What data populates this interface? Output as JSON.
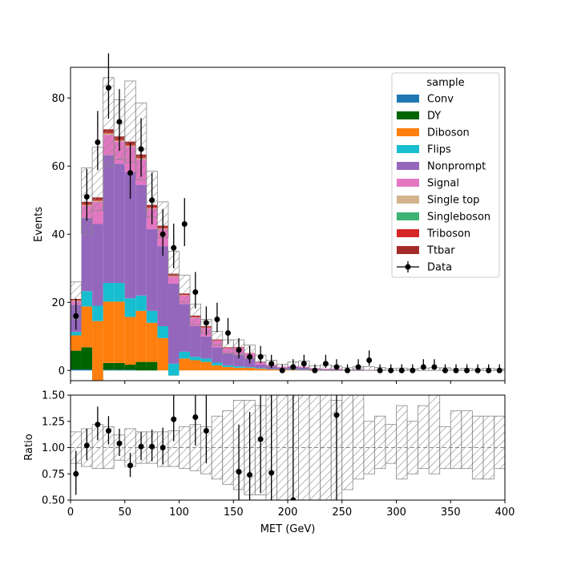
{
  "chart_data": {
    "type": "bar",
    "subtype": "stacked-histogram-with-data-points-and-ratio-panel",
    "x": {
      "label": "MET (GeV)",
      "range": [
        0,
        400
      ],
      "ticks": [
        0,
        50,
        100,
        150,
        200,
        250,
        300,
        350,
        400
      ],
      "bin_edges": [
        0,
        10,
        20,
        30,
        40,
        50,
        60,
        70,
        80,
        90,
        100,
        110,
        120,
        130,
        140,
        150,
        160,
        170,
        180,
        190,
        200,
        210,
        220,
        230,
        240,
        250,
        260,
        270,
        280,
        290,
        300,
        310,
        320,
        330,
        340,
        350,
        360,
        370,
        380,
        390,
        400
      ]
    },
    "main_panel": {
      "ylabel": "Events",
      "ylim": [
        -3,
        89
      ],
      "yticks": [
        0,
        20,
        40,
        60,
        80
      ]
    },
    "ratio_panel": {
      "ylabel": "Ratio",
      "ylim": [
        0.5,
        1.5
      ],
      "yticks": [
        0.5,
        0.75,
        1.0,
        1.25,
        1.5
      ],
      "ytick_labels": [
        "0.50",
        "0.75",
        "1.00",
        "1.25",
        "1.50"
      ],
      "reference_line": 1.0
    },
    "legend": {
      "title": "sample",
      "position": "top-right",
      "entries": [
        "Conv",
        "DY",
        "Diboson",
        "Flips",
        "Nonprompt",
        "Signal",
        "Single top",
        "Singleboson",
        "Triboson",
        "Ttbar",
        "Data"
      ]
    },
    "series": [
      {
        "name": "Conv",
        "color": "#1f77b4",
        "values": [
          0.3,
          0.3,
          0,
          0.2,
          0.2,
          0.2,
          0,
          0,
          0,
          0,
          0,
          0,
          0,
          0,
          0,
          0,
          0,
          0,
          0,
          0,
          0,
          0,
          0,
          0,
          0,
          0,
          0,
          0,
          0,
          0,
          0,
          0,
          0,
          0,
          0,
          0,
          0,
          0,
          0,
          0
        ]
      },
      {
        "name": "DY",
        "color": "#006400",
        "values": [
          5.5,
          6.5,
          -3.0,
          2.0,
          2.0,
          1.5,
          2.5,
          2.5,
          0,
          0,
          0,
          0,
          0,
          0,
          0,
          0,
          0,
          0,
          0,
          0,
          0,
          0,
          0,
          0,
          0,
          0,
          0,
          0,
          0,
          0,
          0,
          0,
          0,
          0,
          0,
          0,
          0,
          0,
          0,
          0
        ]
      },
      {
        "name": "Diboson",
        "color": "#ff7f0e",
        "values": [
          4.5,
          12.0,
          17.5,
          18.0,
          18.0,
          14.0,
          15.0,
          11.5,
          9.5,
          -1.5,
          3.5,
          3.0,
          2.5,
          1.5,
          1.0,
          0.8,
          0.8,
          0.5,
          0.3,
          0.3,
          0.3,
          0.2,
          0.2,
          0.1,
          0.1,
          0.1,
          0.1,
          0,
          0,
          0,
          0,
          0,
          0,
          0,
          0,
          0,
          0,
          0,
          0,
          0
        ]
      },
      {
        "name": "Flips",
        "color": "#17becf",
        "values": [
          1.0,
          4.5,
          4.5,
          5.5,
          5.5,
          5.5,
          4.5,
          3.5,
          3.5,
          3.5,
          2.0,
          1.0,
          1.0,
          0.8,
          0.5,
          0.4,
          0.2,
          0.2,
          0.1,
          0.1,
          0.1,
          0.1,
          0,
          0,
          0,
          0,
          0,
          0,
          0,
          0,
          0,
          0,
          0,
          0,
          0,
          0,
          0,
          0,
          0,
          0
        ]
      },
      {
        "name": "Nonprompt",
        "color": "#9467bd",
        "values": [
          8.0,
          21.5,
          24.0,
          37.5,
          35.0,
          37.0,
          32.5,
          24.0,
          23.5,
          23.5,
          14.0,
          9.0,
          6.5,
          4.5,
          3.5,
          3.5,
          2.5,
          1.0,
          0.8,
          0.4,
          0.6,
          0.5,
          0.3,
          0.2,
          0.2,
          0.1,
          0.2,
          0.1,
          0.1,
          0.1,
          0.1,
          0,
          0.1,
          0,
          0.1,
          0,
          0,
          0,
          0,
          0
        ]
      },
      {
        "name": "Signal",
        "color": "#e377c2",
        "values": [
          1.0,
          3.5,
          6.5,
          6.0,
          6.5,
          7.5,
          7.5,
          6.0,
          5.0,
          2.0,
          2.5,
          2.5,
          2.5,
          2.0,
          1.5,
          2.0,
          1.5,
          0.8,
          0.5,
          0.3,
          0.3,
          0.3,
          0.2,
          0.2,
          0.2,
          0.1,
          0.1,
          0.1,
          0.1,
          0,
          0.1,
          0,
          0,
          0,
          0,
          0,
          0,
          0,
          0,
          0
        ]
      },
      {
        "name": "Single top",
        "color": "#d2b48c",
        "values": [
          0.2,
          0.3,
          0.3,
          0.4,
          0.3,
          0.3,
          0.3,
          0.2,
          0.2,
          0.2,
          0.1,
          0.1,
          0.1,
          0,
          0,
          0,
          0,
          0,
          0,
          0,
          0,
          0,
          0,
          0,
          0,
          0,
          0,
          0,
          0,
          0,
          0,
          0,
          0,
          0,
          0,
          0,
          0,
          0,
          0,
          0
        ]
      },
      {
        "name": "Singleboson",
        "color": "#3cb371",
        "values": [
          0,
          0,
          0,
          0,
          0,
          0,
          0,
          0,
          0,
          0,
          0,
          0,
          0,
          0,
          0,
          0,
          0,
          0,
          0,
          0,
          0,
          0,
          0,
          0,
          0,
          0,
          0,
          0,
          0,
          0,
          0,
          0,
          0,
          0,
          0,
          0,
          0,
          0,
          0,
          0
        ]
      },
      {
        "name": "Triboson",
        "color": "#d62728",
        "values": [
          0.2,
          0.3,
          0.3,
          0.4,
          0.4,
          0.4,
          0.4,
          0.3,
          0.3,
          0.3,
          0.2,
          0.2,
          0.2,
          0.1,
          0.1,
          0.1,
          0,
          0,
          0,
          0,
          0,
          0,
          0,
          0,
          0,
          0,
          0,
          0,
          0,
          0,
          0,
          0,
          0,
          0,
          0,
          0,
          0,
          0,
          0,
          0
        ]
      },
      {
        "name": "Ttbar",
        "color": "#a52a2a",
        "values": [
          0.3,
          0.6,
          0.7,
          0.8,
          0.8,
          0.8,
          0.7,
          0.6,
          0.5,
          0.4,
          0.3,
          0.3,
          0.2,
          0.2,
          0.2,
          0.1,
          0.1,
          0.1,
          0,
          0,
          0,
          0,
          0,
          0,
          0,
          0,
          0,
          0,
          0,
          0,
          0,
          0,
          0,
          0,
          0,
          0,
          0,
          0,
          0,
          0
        ]
      }
    ],
    "stat_band": {
      "up": [
        26,
        59.5,
        65.5,
        86,
        79.5,
        85,
        78.5,
        58.5,
        49.5,
        35,
        28,
        19.5,
        15,
        11.5,
        9,
        9,
        7.5,
        4.5,
        3,
        1.8,
        2.5,
        2.8,
        1.4,
        1.6,
        1.3,
        0.8,
        1.2,
        1.1,
        0.9,
        0.6,
        0.7,
        0.5,
        0.7,
        0.8,
        0.8,
        0.5,
        0.6,
        0.4,
        0.6,
        0.5
      ],
      "down": [
        15,
        40,
        47,
        60,
        62,
        61,
        56,
        45,
        39,
        28,
        20,
        13.5,
        11,
        7.5,
        5,
        4.5,
        3.5,
        2.5,
        1.2,
        0.3,
        0.2,
        0.1,
        0,
        0,
        0,
        0,
        0,
        0,
        0,
        0,
        0,
        0,
        0,
        0,
        0,
        0,
        0,
        0,
        0,
        0
      ]
    },
    "data_points": {
      "name": "Data",
      "color": "#000000",
      "values": [
        16,
        51,
        67,
        83,
        73,
        58,
        65,
        50,
        40,
        36,
        43,
        23,
        14,
        15,
        11,
        6,
        4,
        4,
        2,
        0,
        1,
        2,
        0,
        2,
        1,
        0,
        1,
        3,
        0,
        0,
        0,
        0,
        1,
        1,
        0,
        0,
        0,
        0,
        0,
        0
      ],
      "errors_up": [
        5.1,
        8.2,
        9.2,
        10.1,
        9.6,
        8.7,
        9.1,
        8.1,
        7.4,
        7.1,
        7.6,
        5.9,
        4.8,
        4.9,
        4.4,
        3.5,
        3.2,
        3.2,
        2.6,
        1.8,
        2.3,
        2.6,
        1.8,
        2.6,
        2.3,
        1.8,
        2.3,
        2.9,
        1.8,
        1.8,
        1.8,
        1.8,
        2.3,
        2.3,
        1.8,
        1.8,
        1.8,
        1.8,
        1.8,
        1.8
      ],
      "errors_down": [
        4.0,
        7.1,
        8.2,
        9.1,
        8.5,
        7.6,
        8.1,
        7.1,
        6.3,
        6.0,
        6.5,
        4.8,
        3.7,
        3.8,
        3.3,
        2.4,
        1.9,
        1.9,
        1.3,
        0,
        0.8,
        1.3,
        0,
        1.3,
        0.8,
        0,
        0.8,
        1.6,
        0,
        0,
        0,
        0,
        0.8,
        0.8,
        0,
        0,
        0,
        0,
        0,
        0
      ]
    },
    "ratio": {
      "band_up": [
        1.15,
        1.18,
        1.22,
        1.2,
        1.12,
        1.18,
        1.15,
        1.15,
        1.15,
        1.16,
        1.2,
        1.22,
        1.2,
        1.3,
        1.35,
        1.45,
        1.45,
        1.4,
        1.52,
        1.6,
        1.8,
        1.75,
        1.8,
        1.55,
        1.45,
        1.6,
        1.5,
        1.25,
        1.3,
        1.22,
        1.4,
        1.25,
        1.4,
        1.5,
        1.2,
        1.35,
        1.35,
        1.3,
        1.3,
        1.3
      ],
      "band_down": [
        0.85,
        0.82,
        0.8,
        0.8,
        0.88,
        0.82,
        0.85,
        0.85,
        0.82,
        0.82,
        0.8,
        0.78,
        0.75,
        0.7,
        0.65,
        0.6,
        0.55,
        0.55,
        0.5,
        0.4,
        0.3,
        0.4,
        0.4,
        0.5,
        0.5,
        0.6,
        0.7,
        0.75,
        0.8,
        0.85,
        0.7,
        0.75,
        0.8,
        0.75,
        0.8,
        0.8,
        0.8,
        0.7,
        0.7,
        0.8
      ],
      "points": [
        {
          "bin": 0,
          "y": 0.75,
          "up": 0.22,
          "down": 0.2
        },
        {
          "bin": 1,
          "y": 1.02,
          "up": 0.16,
          "down": 0.14
        },
        {
          "bin": 2,
          "y": 1.22,
          "up": 0.17,
          "down": 0.15
        },
        {
          "bin": 3,
          "y": 1.16,
          "up": 0.14,
          "down": 0.13
        },
        {
          "bin": 4,
          "y": 1.04,
          "up": 0.14,
          "down": 0.12
        },
        {
          "bin": 5,
          "y": 0.83,
          "up": 0.12,
          "down": 0.11
        },
        {
          "bin": 6,
          "y": 1.01,
          "up": 0.14,
          "down": 0.13
        },
        {
          "bin": 7,
          "y": 1.01,
          "up": 0.16,
          "down": 0.14
        },
        {
          "bin": 8,
          "y": 1.0,
          "up": 0.19,
          "down": 0.16
        },
        {
          "bin": 9,
          "y": 1.27,
          "up": 0.25,
          "down": 0.21
        },
        {
          "bin": 11,
          "y": 1.29,
          "up": 0.33,
          "down": 0.27
        },
        {
          "bin": 12,
          "y": 1.16,
          "up": 0.4,
          "down": 0.31
        },
        {
          "bin": 15,
          "y": 0.77,
          "up": 0.45,
          "down": 0.31
        },
        {
          "bin": 16,
          "y": 0.74,
          "up": 0.6,
          "down": 0.35
        },
        {
          "bin": 17,
          "y": 1.08,
          "up": 0.85,
          "down": 0.51
        },
        {
          "bin": 18,
          "y": 0.76,
          "up": 1.0,
          "down": 0.5
        },
        {
          "bin": 20,
          "y": 0.5,
          "up": 1.2,
          "down": 0.4
        },
        {
          "bin": 24,
          "y": 1.31,
          "up": 1.5,
          "down": 1.0
        }
      ]
    }
  }
}
